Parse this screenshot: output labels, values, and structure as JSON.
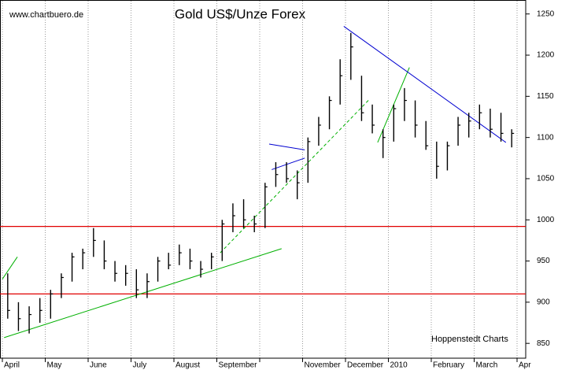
{
  "chart_data": {
    "type": "ohlc",
    "title": "Gold US$/Unze Forex",
    "source": "www.chartbuero.de",
    "credit": "Hoppenstedt Charts",
    "categories": [
      "April",
      "May",
      "June",
      "July",
      "August",
      "September",
      null,
      "November",
      "December",
      "2010",
      "February",
      "March",
      "Apr"
    ],
    "high": [
      935,
      900,
      895,
      905,
      915,
      935,
      960,
      965,
      990,
      975,
      950,
      945,
      940,
      935,
      955,
      960,
      970,
      965,
      950,
      960,
      1000,
      1020,
      1025,
      1005,
      1045,
      1070,
      1070,
      1060,
      1100,
      1125,
      1150,
      1195,
      1227,
      1175,
      1140,
      1110,
      1140,
      1160,
      1145,
      1120,
      1095,
      1095,
      1125,
      1130,
      1140,
      1135,
      1130,
      1110
    ],
    "low": [
      880,
      865,
      862,
      875,
      880,
      905,
      925,
      940,
      955,
      940,
      925,
      920,
      905,
      905,
      925,
      940,
      945,
      940,
      930,
      940,
      950,
      985,
      990,
      985,
      990,
      1040,
      1045,
      1025,
      1045,
      1090,
      1110,
      1140,
      1170,
      1120,
      1105,
      1075,
      1095,
      1120,
      1100,
      1085,
      1050,
      1060,
      1090,
      1100,
      1110,
      1100,
      1095,
      1088
    ],
    "close": [
      890,
      880,
      885,
      890,
      910,
      930,
      955,
      960,
      975,
      950,
      935,
      935,
      915,
      925,
      950,
      945,
      960,
      950,
      940,
      955,
      995,
      1005,
      1000,
      995,
      1040,
      1055,
      1050,
      1045,
      1095,
      1115,
      1145,
      1175,
      1210,
      1130,
      1115,
      1100,
      1135,
      1145,
      1115,
      1090,
      1065,
      1090,
      1115,
      1120,
      1130,
      1110,
      1105,
      1105
    ],
    "color": "#000000",
    "ylim": [
      832,
      1266
    ],
    "yticks": [
      850,
      900,
      950,
      1000,
      1050,
      1100,
      1150,
      1200,
      1250
    ],
    "grid": true,
    "hlines": [
      {
        "value": 992,
        "color": "#e00000"
      },
      {
        "value": 910,
        "color": "#e00000"
      }
    ],
    "trend_lines": [
      {
        "color": "#00b000",
        "from": [
          0.04,
          857
        ],
        "to": [
          6.51,
          965
        ]
      },
      {
        "color": "#00b000",
        "from": [
          0,
          928
        ],
        "to": [
          0.35,
          955
        ]
      },
      {
        "color": "#00b000",
        "from": [
          5.08,
          960
        ],
        "to": [
          8.57,
          1147
        ],
        "dashed": true
      },
      {
        "color": "#00b000",
        "from": [
          8.75,
          1094
        ],
        "to": [
          9.49,
          1185
        ]
      },
      {
        "color": "#0000d0",
        "from": [
          7.96,
          1235
        ],
        "to": [
          11.74,
          1094
        ]
      },
      {
        "color": "#0000d0",
        "from": [
          6.22,
          1092
        ],
        "to": [
          7.05,
          1085
        ]
      },
      {
        "color": "#0000d0",
        "from": [
          6.28,
          1061
        ],
        "to": [
          7.05,
          1075
        ]
      }
    ]
  }
}
